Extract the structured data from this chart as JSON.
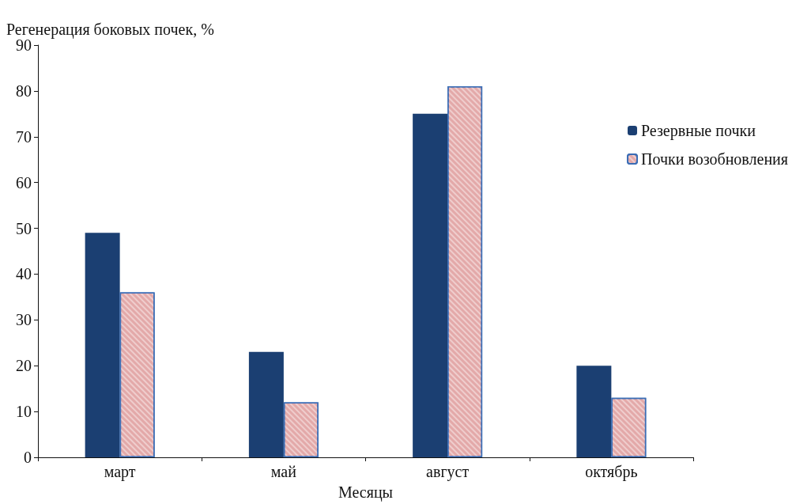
{
  "chart_data": {
    "type": "bar",
    "ylabel": "Регенерация боковых почек, %",
    "xlabel": "Месяцы",
    "categories": [
      "март",
      "май",
      "август",
      "октябрь"
    ],
    "series": [
      {
        "name": "Резервные почки",
        "color": "#1b3f72",
        "values": [
          49,
          23,
          75,
          20
        ]
      },
      {
        "name": "Почки возобновления",
        "color": "#e3a9a9",
        "values": [
          36,
          12,
          81,
          13
        ]
      }
    ],
    "ylim": [
      0,
      90
    ],
    "yticks": [
      0,
      10,
      20,
      30,
      40,
      50,
      60,
      70,
      80,
      90
    ],
    "grid": false,
    "legend": "right"
  }
}
